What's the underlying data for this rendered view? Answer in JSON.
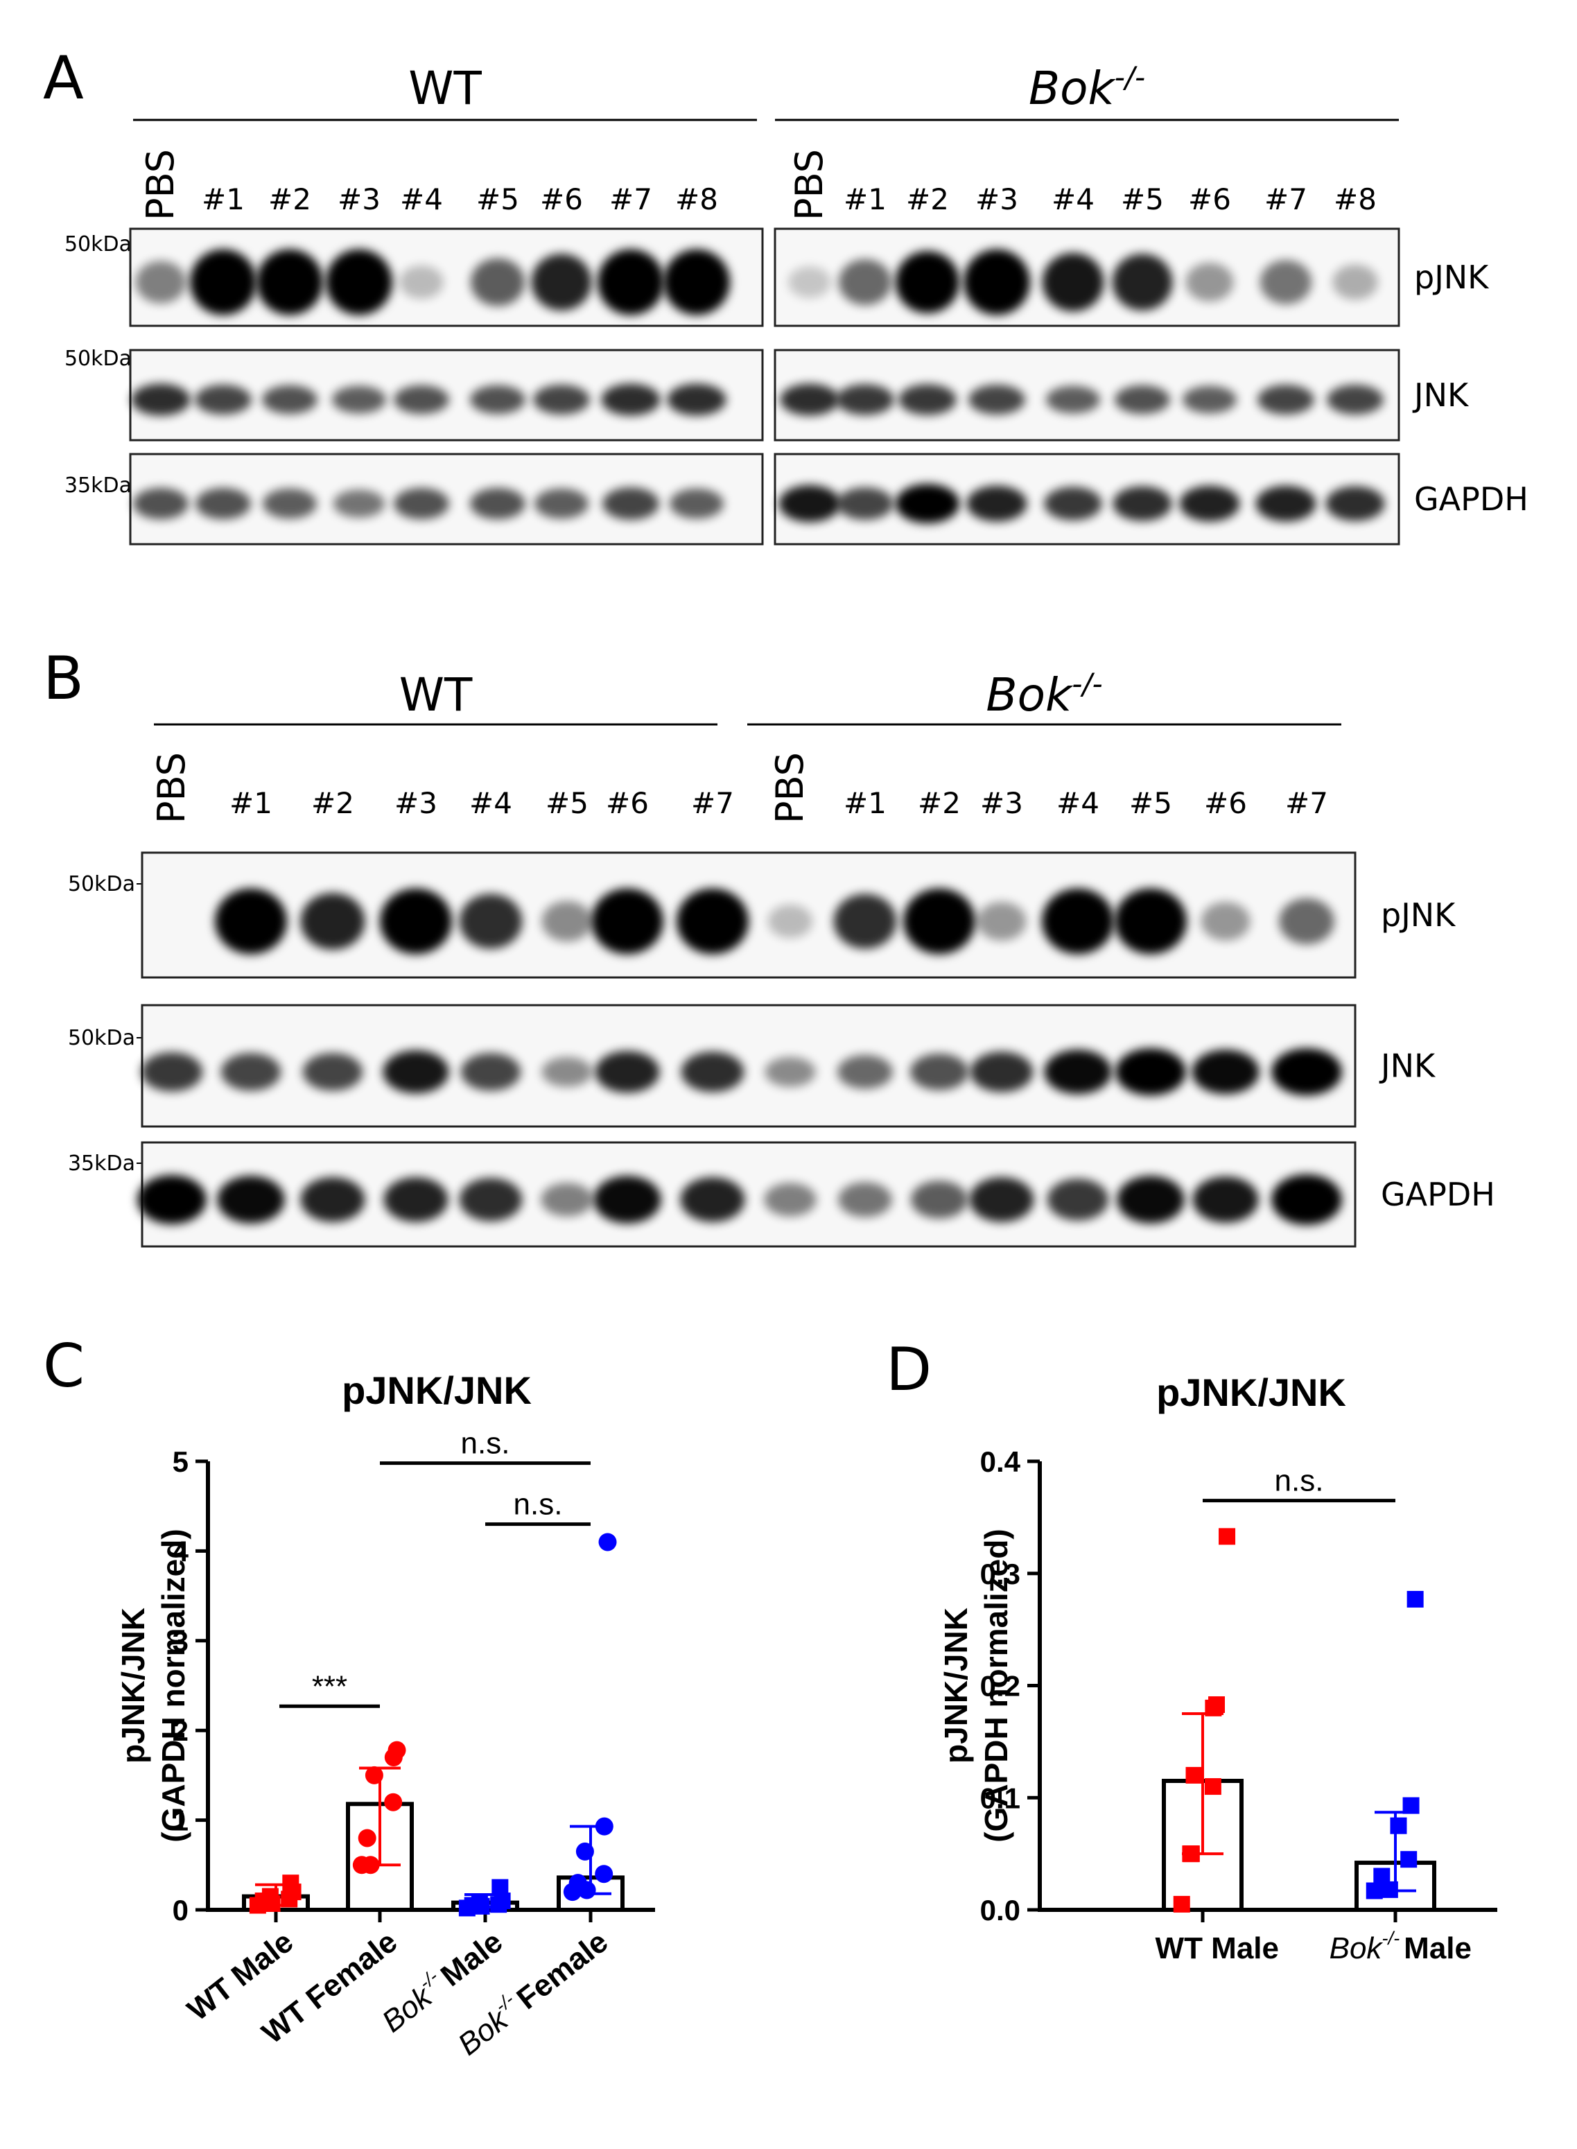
{
  "panels": {
    "A": {
      "letter": "A",
      "groups": [
        {
          "name": "WT",
          "lanes": [
            "PBS",
            "#1",
            "#2",
            "#3",
            "#4",
            "#5",
            "#6",
            "#7",
            "#8"
          ]
        },
        {
          "name": "Bok",
          "superscript": "-/-",
          "lanes": [
            "PBS",
            "#1",
            "#2",
            "#3",
            "#4",
            "#5",
            "#6",
            "#7",
            "#8"
          ]
        }
      ],
      "blots": [
        {
          "label": "pJNK",
          "marker": "50kDa",
          "intensity": [
            [
              0.35,
              1.0,
              1.0,
              1.0,
              0.1,
              0.5,
              0.75,
              1.0,
              1.0
            ],
            [
              0.05,
              0.45,
              0.9,
              1.0,
              0.8,
              0.75,
              0.25,
              0.4,
              0.15
            ]
          ]
        },
        {
          "label": "JNK",
          "marker": "50kDa",
          "intensity": [
            [
              0.7,
              0.6,
              0.55,
              0.5,
              0.55,
              0.55,
              0.6,
              0.7,
              0.7
            ],
            [
              0.7,
              0.65,
              0.65,
              0.6,
              0.5,
              0.55,
              0.5,
              0.6,
              0.6
            ]
          ]
        },
        {
          "label": "GAPDH",
          "marker": "35kDa",
          "intensity": [
            [
              0.55,
              0.55,
              0.5,
              0.4,
              0.55,
              0.55,
              0.5,
              0.6,
              0.5
            ],
            [
              0.8,
              0.6,
              0.9,
              0.75,
              0.65,
              0.7,
              0.75,
              0.75,
              0.7
            ]
          ]
        }
      ]
    },
    "B": {
      "letter": "B",
      "groups": [
        {
          "name": "WT",
          "lanes": [
            "PBS",
            "#1",
            "#2",
            "#3",
            "#4",
            "#5",
            "#6",
            "#7"
          ]
        },
        {
          "name": "Bok",
          "superscript": "-/-",
          "lanes": [
            "PBS",
            "#1",
            "#2",
            "#3",
            "#4",
            "#5",
            "#6",
            "#7"
          ]
        }
      ],
      "blots": [
        {
          "label": "pJNK",
          "marker": "50kDa",
          "intensity": [
            [
              0.0,
              1.0,
              0.75,
              1.0,
              0.7,
              0.3,
              1.0,
              1.0
            ],
            [
              0.1,
              0.7,
              1.0,
              0.25,
              1.0,
              1.0,
              0.25,
              0.45
            ]
          ]
        },
        {
          "label": "JNK",
          "marker": "50kDa",
          "intensity": [
            [
              0.65,
              0.6,
              0.6,
              0.8,
              0.6,
              0.3,
              0.75,
              0.7
            ],
            [
              0.3,
              0.45,
              0.55,
              0.7,
              0.85,
              0.95,
              0.85,
              0.95
            ]
          ]
        },
        {
          "label": "GAPDH",
          "marker": "35kDa",
          "intensity": [
            [
              0.9,
              0.85,
              0.75,
              0.75,
              0.7,
              0.35,
              0.85,
              0.75
            ],
            [
              0.35,
              0.4,
              0.5,
              0.75,
              0.65,
              0.85,
              0.8,
              0.95
            ]
          ]
        }
      ]
    }
  },
  "chart_data": [
    {
      "panel": "C",
      "type": "bar",
      "title": "pJNK/JNK",
      "ylabel": [
        "pJNK/JNK",
        "(GAPDH normalized)"
      ],
      "ylim": [
        0,
        5
      ],
      "yticks": [
        "0",
        "1",
        "2",
        "3",
        "4",
        "5"
      ],
      "categories": [
        {
          "base": "WT Male",
          "pre": "",
          "sup": "",
          "post": ""
        },
        {
          "base": "WT Female",
          "pre": "",
          "sup": "",
          "post": ""
        },
        {
          "base": "Male",
          "pre": "Bok",
          "sup": "-/-",
          "post": ""
        },
        {
          "base": "Female",
          "pre": "Bok",
          "sup": "-/-",
          "post": ""
        }
      ],
      "colors": [
        "#ff0000",
        "#ff0000",
        "#0000ff",
        "#0000ff"
      ],
      "markers": [
        "square",
        "circle",
        "square",
        "circle"
      ],
      "bars": [
        0.15,
        1.18,
        0.08,
        0.36
      ],
      "error_low": [
        0.05,
        0.5,
        0.03,
        0.18
      ],
      "error_high": [
        0.28,
        1.58,
        0.17,
        0.93
      ],
      "points": [
        [
          0.05,
          0.07,
          0.1,
          0.12,
          0.15,
          0.2,
          0.3
        ],
        [
          0.5,
          0.5,
          0.8,
          1.2,
          1.5,
          1.7,
          1.78
        ],
        [
          0.02,
          0.04,
          0.05,
          0.06,
          0.08,
          0.1,
          0.25
        ],
        [
          0.2,
          0.22,
          0.3,
          0.4,
          0.65,
          0.93,
          4.1
        ]
      ],
      "annotations": [
        {
          "text": "***",
          "from": 0,
          "to": 1,
          "y": 2.27
        },
        {
          "text": "n.s.",
          "from": 1,
          "to": 3,
          "y": 4.98
        },
        {
          "text": "n.s.",
          "from": 2,
          "to": 3,
          "y": 4.3
        }
      ]
    },
    {
      "panel": "D",
      "type": "bar",
      "title": "pJNK/JNK",
      "ylabel": [
        "pJNK/JNK",
        "(GAPDH normalized)"
      ],
      "ylim": [
        0,
        0.4
      ],
      "yticks": [
        "0.0",
        "0.1",
        "0.2",
        "0.3",
        "0.4"
      ],
      "categories": [
        {
          "base": "WT Male",
          "pre": "",
          "sup": "",
          "post": ""
        },
        {
          "base": "Male",
          "pre": "Bok",
          "sup": "-/-",
          "post": ""
        }
      ],
      "colors": [
        "#ff0000",
        "#0000ff"
      ],
      "markers": [
        "square",
        "square"
      ],
      "bars": [
        0.115,
        0.042
      ],
      "error_low": [
        0.05,
        0.017
      ],
      "error_high": [
        0.175,
        0.087
      ],
      "points": [
        [
          0.005,
          0.05,
          0.05,
          0.11,
          0.12,
          0.18,
          0.183,
          0.333
        ],
        [
          0.017,
          0.018,
          0.03,
          0.045,
          0.075,
          0.093,
          0.277
        ]
      ],
      "annotations": [
        {
          "text": "n.s.",
          "from": 0,
          "to": 1,
          "y": 0.365
        }
      ]
    }
  ]
}
